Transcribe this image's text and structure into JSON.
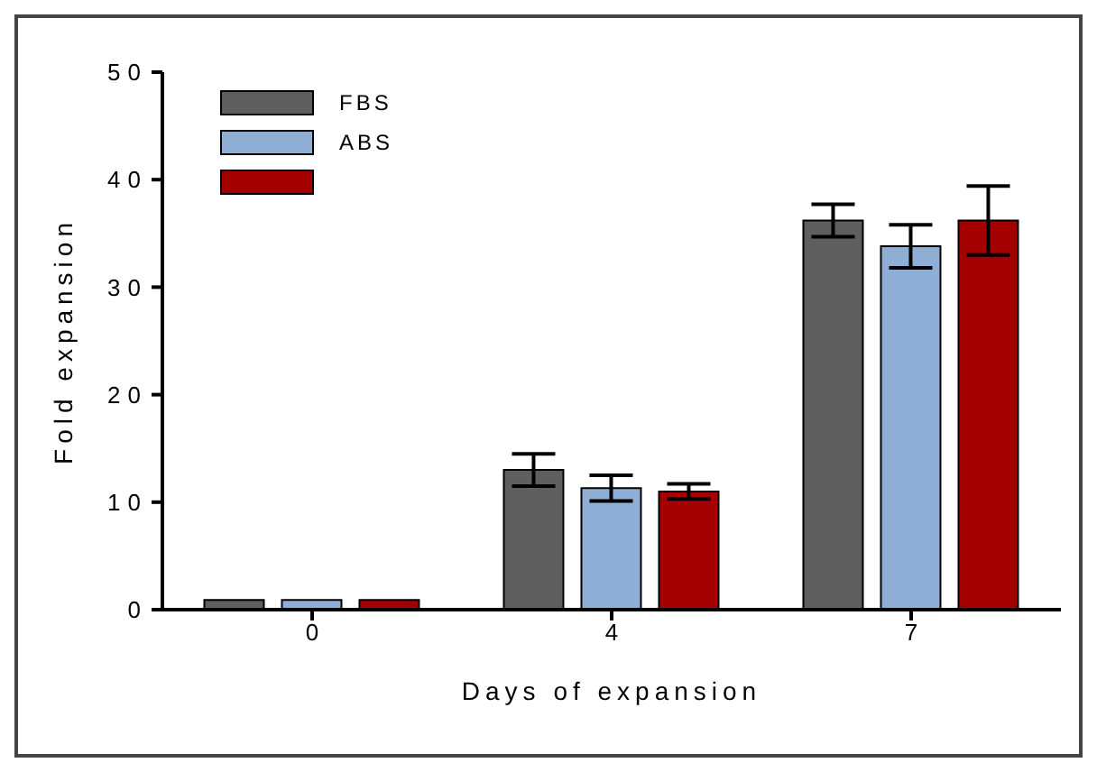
{
  "chart_data": {
    "type": "bar",
    "xlabel": "Days of expansion",
    "ylabel": "Fold expansion",
    "categories": [
      "0",
      "4",
      "7"
    ],
    "series": [
      {
        "name": "FBS",
        "color": "#5f5f5f",
        "values": [
          0.9,
          13,
          36.2
        ],
        "errors": [
          null,
          1.5,
          1.5
        ]
      },
      {
        "name": "ABS",
        "color": "#8eaed6",
        "values": [
          0.9,
          11.3,
          33.8
        ],
        "errors": [
          null,
          1.2,
          2
        ]
      },
      {
        "color": "#a50000",
        "values": [
          0.9,
          11,
          36.2
        ],
        "errors": [
          null,
          0.7,
          3.2
        ]
      }
    ],
    "ylim": [
      0,
      50
    ],
    "yticks": [
      0,
      10,
      20,
      30,
      40,
      50
    ],
    "grid": false,
    "legend": "top left"
  }
}
